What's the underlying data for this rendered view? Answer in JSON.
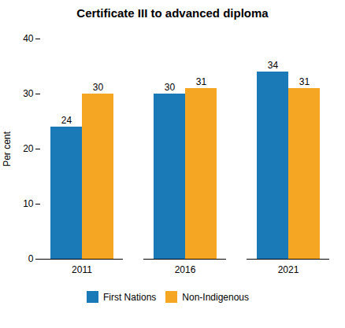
{
  "chart_data": {
    "type": "bar",
    "title": "Certificate III to advanced diploma",
    "categories": [
      "2011",
      "2016",
      "2021"
    ],
    "series": [
      {
        "name": "First Nations",
        "color": "#1a7ab8",
        "values": [
          24,
          30,
          34
        ]
      },
      {
        "name": "Non-Indigenous",
        "color": "#f5a623",
        "values": [
          30,
          31,
          31
        ]
      }
    ],
    "ylabel": "Per cent",
    "ylim": [
      0,
      40
    ],
    "yticks": [
      0,
      10,
      20,
      30,
      40
    ],
    "data_labels": true,
    "legend": "bottom",
    "grid": false
  }
}
